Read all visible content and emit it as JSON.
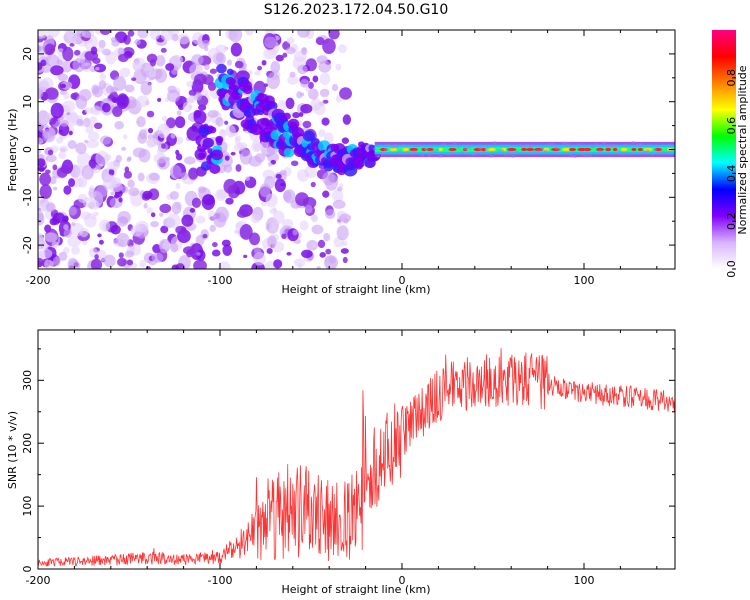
{
  "title": "S126.2023.172.04.50.G10",
  "chart_data": [
    {
      "type": "heatmap",
      "xlabel": "Height of straight line (km)",
      "ylabel": "Frequency (Hz)",
      "xlim": [
        -200,
        150
      ],
      "ylim": [
        -25,
        25
      ],
      "x_ticks": [
        -200,
        -100,
        0,
        100
      ],
      "x_tick_labels": [
        "-200",
        "-100",
        "0",
        "100"
      ],
      "y_ticks": [
        -20,
        -10,
        0,
        10,
        20
      ],
      "y_tick_labels": [
        "-20",
        "-10",
        "0",
        "10",
        "20"
      ],
      "colorbar": {
        "label": "Normalized spectral amplitude",
        "range": [
          0,
          1
        ],
        "ticks": [
          0,
          0.2,
          0.4,
          0.6,
          0.8
        ],
        "tick_labels": [
          "0.0",
          "0.2",
          "0.4",
          "0.6",
          "0.8"
        ],
        "colors": [
          "#ffffff",
          "#d9b3ff",
          "#8000ff",
          "#0000ff",
          "#00ffff",
          "#00ff00",
          "#ffff00",
          "#ff8000",
          "#ff0000",
          "#ff0080"
        ]
      },
      "ridge_frequency_hz": [
        {
          "x": -100,
          "y": 14
        },
        {
          "x": -90,
          "y": 11
        },
        {
          "x": -80,
          "y": 8
        },
        {
          "x": -70,
          "y": 5
        },
        {
          "x": -60,
          "y": 3
        },
        {
          "x": -50,
          "y": 0
        },
        {
          "x": -40,
          "y": -2
        },
        {
          "x": -30,
          "y": -2
        },
        {
          "x": -20,
          "y": -1
        },
        {
          "x": -10,
          "y": 0
        },
        {
          "x": 0,
          "y": 1
        },
        {
          "x": 20,
          "y": 0
        },
        {
          "x": 150,
          "y": 0
        }
      ],
      "grid": false
    },
    {
      "type": "line",
      "xlabel": "Height of straight line (km)",
      "ylabel": "SNR (10 * v/v)",
      "xlim": [
        -200,
        150
      ],
      "ylim": [
        0,
        380
      ],
      "x_ticks": [
        -200,
        -100,
        0,
        100
      ],
      "x_tick_labels": [
        "-200",
        "-100",
        "0",
        "100"
      ],
      "y_ticks": [
        0,
        100,
        200,
        300
      ],
      "y_tick_labels": [
        "0",
        "100",
        "200",
        "300"
      ],
      "color": "#ff3333",
      "envelope": {
        "x": [
          -200,
          -180,
          -160,
          -140,
          -120,
          -100,
          -90,
          -80,
          -70,
          -60,
          -50,
          -40,
          -30,
          -25,
          -20,
          -15,
          -10,
          -5,
          0,
          10,
          20,
          30,
          40,
          50,
          60,
          70,
          80,
          90,
          100,
          120,
          150
        ],
        "y": [
          10,
          12,
          14,
          18,
          15,
          20,
          35,
          70,
          95,
          90,
          85,
          75,
          80,
          95,
          150,
          165,
          175,
          190,
          215,
          250,
          275,
          290,
          300,
          300,
          305,
          300,
          295,
          285,
          280,
          275,
          265
        ]
      },
      "grid": false
    }
  ]
}
